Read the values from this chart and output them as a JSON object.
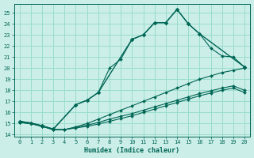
{
  "xlabel": "Humidex (Indice chaleur)",
  "bg_color": "#cceee8",
  "grid_color": "#99ddcc",
  "line_color": "#006655",
  "xlim": [
    -0.5,
    20.5
  ],
  "ylim": [
    13.8,
    25.8
  ],
  "xticks": [
    0,
    1,
    2,
    3,
    4,
    5,
    6,
    7,
    8,
    9,
    10,
    11,
    12,
    13,
    14,
    15,
    16,
    17,
    18,
    19,
    20
  ],
  "yticks": [
    14,
    15,
    16,
    17,
    18,
    19,
    20,
    21,
    22,
    23,
    24,
    25
  ],
  "series": [
    {
      "x": [
        0,
        1,
        2,
        3,
        4,
        5,
        6,
        7,
        8,
        9,
        10,
        11,
        12,
        13,
        14,
        15,
        16,
        17,
        18,
        19,
        20
      ],
      "y": [
        15.2,
        15.05,
        14.8,
        14.5,
        null,
        16.7,
        17.1,
        17.8,
        null,
        null,
        22.6,
        23.0,
        24.1,
        24.1,
        25.3,
        24.0,
        23.1,
        null,
        null,
        null,
        20.1
      ]
    },
    {
      "x": [
        0,
        1,
        2,
        3,
        4,
        5,
        6,
        7,
        8,
        9,
        10,
        11,
        12,
        13,
        14,
        15,
        16,
        17,
        18,
        19,
        20
      ],
      "y": [
        15.2,
        15.05,
        14.8,
        14.5,
        null,
        16.7,
        17.1,
        17.8,
        20.0,
        20.8,
        22.6,
        23.0,
        24.1,
        24.1,
        25.3,
        24.0,
        23.1,
        21.8,
        21.1,
        21.0,
        20.1
      ]
    },
    {
      "x": [
        0,
        1,
        2,
        3,
        4,
        5,
        6,
        7,
        8,
        9,
        10,
        11,
        12,
        13,
        14,
        15,
        16,
        17,
        18,
        19,
        20
      ],
      "y": [
        15.1,
        15.0,
        14.75,
        14.45,
        14.45,
        14.7,
        15.0,
        15.4,
        15.8,
        16.2,
        16.6,
        17.0,
        17.4,
        17.8,
        18.2,
        18.6,
        19.0,
        19.3,
        19.6,
        19.8,
        20.0
      ]
    },
    {
      "x": [
        0,
        1,
        2,
        3,
        4,
        5,
        6,
        7,
        8,
        9,
        10,
        11,
        12,
        13,
        14,
        15,
        16,
        17,
        18,
        19,
        20
      ],
      "y": [
        15.1,
        15.0,
        14.75,
        14.45,
        14.45,
        14.65,
        14.85,
        15.1,
        15.4,
        15.65,
        15.9,
        16.2,
        16.5,
        16.8,
        17.1,
        17.4,
        17.7,
        17.95,
        18.2,
        18.4,
        18.0
      ]
    },
    {
      "x": [
        0,
        1,
        2,
        3,
        4,
        5,
        6,
        7,
        8,
        9,
        10,
        11,
        12,
        13,
        14,
        15,
        16,
        17,
        18,
        19,
        20
      ],
      "y": [
        15.1,
        15.0,
        14.75,
        14.45,
        14.45,
        14.6,
        14.75,
        14.95,
        15.2,
        15.45,
        15.7,
        16.0,
        16.3,
        16.6,
        16.9,
        17.2,
        17.5,
        17.75,
        18.0,
        18.2,
        17.8
      ]
    }
  ]
}
